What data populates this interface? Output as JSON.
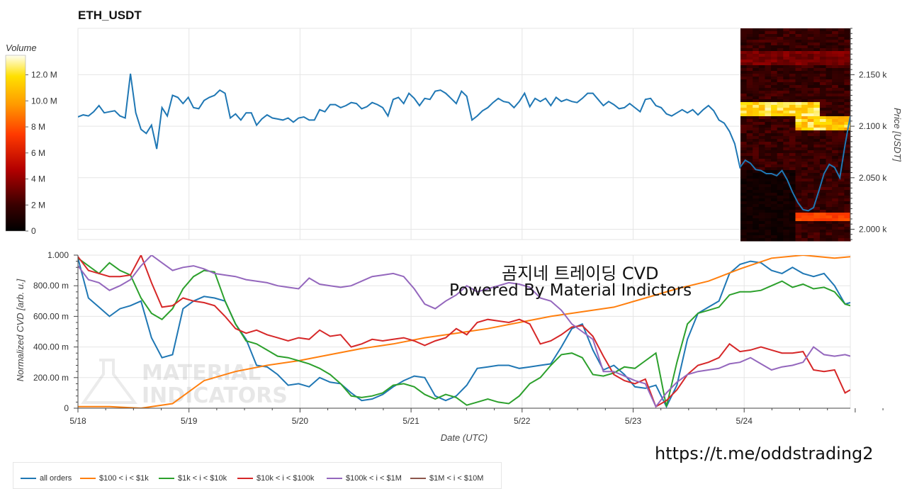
{
  "title": "ETH_USDT",
  "overlay": {
    "line1": "곰지네 트레이딩 CVD",
    "line2": "Powered By Material Indictors"
  },
  "watermark": {
    "line1": "MATERIAL",
    "line2": "INDICATORS"
  },
  "url_text": "https://t.me/oddstrading2",
  "colors": {
    "all_orders": "#1f77b4",
    "s100_1k": "#ff7f0e",
    "s1k_10k": "#2ca02c",
    "s10k_100k": "#d62728",
    "s100k_1m": "#9467bd",
    "s1m_10m": "#8c564b",
    "grid": "#e5e5e5",
    "axis": "#444444"
  },
  "legend": [
    {
      "label": "all orders",
      "color": "#1f77b4"
    },
    {
      "label": "$100 < i < $1k",
      "color": "#ff7f0e"
    },
    {
      "label": "$1k < i < $10k",
      "color": "#2ca02c"
    },
    {
      "label": "$10k < i < $100k",
      "color": "#d62728"
    },
    {
      "label": "$100k < i < $1M",
      "color": "#9467bd"
    },
    {
      "label": "$1M < i < $10M",
      "color": "#8c564b"
    }
  ],
  "chart_data": [
    {
      "type": "line",
      "title": "ETH_USDT",
      "ylabel": "Price [USDT]",
      "ylim": [
        1990,
        2195
      ],
      "y_ticks": [
        "2.000 k",
        "2.050 k",
        "2.100 k",
        "2.150 k"
      ],
      "y_tick_values": [
        2000,
        2050,
        2100,
        2150
      ],
      "xlim": [
        0,
        7.35
      ],
      "x_ticks": [
        0,
        1,
        2,
        3,
        4,
        5,
        6
      ],
      "grid": true,
      "series": [
        {
          "key": "price",
          "x": [
            0,
            0.05,
            0.1,
            0.15,
            0.2,
            0.25,
            0.3,
            0.35,
            0.4,
            0.45,
            0.5,
            0.55,
            0.6,
            0.65,
            0.7,
            0.75,
            0.8,
            0.85,
            0.9,
            0.95,
            1.0,
            1.05,
            1.1,
            1.15,
            1.2,
            1.25,
            1.3,
            1.35,
            1.4,
            1.45,
            1.5,
            1.55,
            1.6,
            1.65,
            1.7,
            1.75,
            1.8,
            1.85,
            1.9,
            1.95,
            2.0,
            2.05,
            2.1,
            2.15,
            2.2,
            2.25,
            2.3,
            2.35,
            2.4,
            2.45,
            2.5,
            2.55,
            2.6,
            2.65,
            2.7,
            2.75,
            2.8,
            2.85,
            2.9,
            2.95,
            3.0,
            3.05,
            3.1,
            3.15,
            3.2,
            3.25,
            3.3,
            3.35,
            3.4,
            3.45,
            3.5,
            3.55,
            3.6,
            3.65,
            3.7,
            3.75,
            3.8,
            3.85,
            3.9,
            3.95,
            4.0,
            4.05,
            4.1,
            4.15,
            4.2,
            4.25,
            4.3,
            4.35,
            4.4,
            4.45,
            4.5,
            4.55,
            4.6,
            4.65,
            4.7,
            4.75,
            4.8,
            4.85,
            4.9,
            4.95,
            5.0,
            5.05,
            5.1,
            5.15,
            5.2,
            5.25,
            5.3,
            5.35,
            5.4,
            5.45,
            5.5,
            5.55,
            5.6,
            5.65,
            5.7,
            5.75,
            5.8,
            5.85,
            5.9,
            5.95,
            6.0,
            6.05,
            6.1,
            6.15,
            6.2,
            6.25,
            6.3,
            6.35,
            6.4,
            6.45,
            6.5,
            6.55,
            6.6,
            6.65,
            6.7,
            6.75,
            6.8,
            6.85,
            6.9,
            6.95,
            7.0,
            7.05,
            7.1,
            7.15,
            7.2,
            7.25,
            7.3,
            7.35
          ],
          "y": [
            2109,
            2111,
            2110,
            2114,
            2120,
            2113,
            2114,
            2115,
            2110,
            2108,
            2151,
            2113,
            2097,
            2093,
            2101,
            2078,
            2118,
            2110,
            2130,
            2128,
            2122,
            2128,
            2118,
            2117,
            2125,
            2128,
            2130,
            2135,
            2132,
            2108,
            2112,
            2106,
            2113,
            2113,
            2101,
            2107,
            2111,
            2108,
            2107,
            2106,
            2108,
            2104,
            2108,
            2109,
            2106,
            2106,
            2116,
            2114,
            2121,
            2121,
            2118,
            2120,
            2123,
            2122,
            2117,
            2119,
            2123,
            2121,
            2118,
            2110,
            2126,
            2128,
            2122,
            2132,
            2127,
            2120,
            2127,
            2126,
            2134,
            2135,
            2132,
            2127,
            2122,
            2134,
            2129,
            2106,
            2110,
            2115,
            2118,
            2123,
            2127,
            2124,
            2123,
            2118,
            2124,
            2132,
            2119,
            2127,
            2124,
            2127,
            2120,
            2128,
            2124,
            2126,
            2124,
            2123,
            2127,
            2132,
            2132,
            2126,
            2120,
            2124,
            2121,
            2117,
            2118,
            2122,
            2118,
            2114,
            2126,
            2127,
            2120,
            2118,
            2112,
            2110,
            2113,
            2116,
            2113,
            2116,
            2111,
            2116,
            2120,
            2115,
            2106,
            2103,
            2095,
            2083,
            2060,
            2067,
            2064,
            2058,
            2057,
            2054,
            2054,
            2052,
            2057,
            2048,
            2036,
            2026,
            2019,
            2018,
            2021,
            2037,
            2054,
            2063,
            2060,
            2050,
            2082,
            2110
          ],
          "color": "#1f77b4"
        }
      ]
    },
    {
      "type": "line",
      "xlabel": "Date (UTC)",
      "ylabel": "Normalized CVD [arb. u.]",
      "ylim": [
        0,
        1
      ],
      "y_ticks": [
        "0",
        "200.00 m",
        "400.00 m",
        "600.00 m",
        "800.00 m",
        "1.000"
      ],
      "x_ticks": [
        "5/18",
        "5/19",
        "5/20",
        "5/21",
        "5/22",
        "5/23",
        "5/24"
      ],
      "xlim": [
        0,
        7.35
      ],
      "grid": true,
      "legend_position": "bottom-left",
      "series": [
        {
          "name": "all orders",
          "color": "#1f77b4",
          "x": [
            0,
            0.1,
            0.2,
            0.3,
            0.4,
            0.5,
            0.6,
            0.7,
            0.8,
            0.9,
            1.0,
            1.1,
            1.2,
            1.3,
            1.4,
            1.5,
            1.6,
            1.7,
            1.8,
            1.9,
            2.0,
            2.1,
            2.2,
            2.3,
            2.4,
            2.5,
            2.6,
            2.7,
            2.8,
            2.9,
            3.0,
            3.1,
            3.2,
            3.3,
            3.4,
            3.5,
            3.6,
            3.7,
            3.8,
            3.9,
            4.0,
            4.1,
            4.2,
            4.3,
            4.4,
            4.5,
            4.6,
            4.7,
            4.8,
            4.9,
            5.0,
            5.1,
            5.2,
            5.3,
            5.4,
            5.5,
            5.6,
            5.7,
            5.8,
            5.9,
            6.0,
            6.1,
            6.2,
            6.3,
            6.4,
            6.5,
            6.6,
            6.7,
            6.8,
            6.9,
            7.0,
            7.1,
            7.2,
            7.3,
            7.35
          ],
          "y": [
            0.98,
            0.72,
            0.66,
            0.6,
            0.65,
            0.67,
            0.7,
            0.46,
            0.33,
            0.35,
            0.65,
            0.7,
            0.73,
            0.72,
            0.7,
            0.55,
            0.45,
            0.28,
            0.27,
            0.22,
            0.15,
            0.16,
            0.14,
            0.2,
            0.17,
            0.16,
            0.1,
            0.05,
            0.06,
            0.09,
            0.14,
            0.18,
            0.21,
            0.2,
            0.08,
            0.05,
            0.08,
            0.15,
            0.26,
            0.27,
            0.28,
            0.28,
            0.26,
            0.27,
            0.28,
            0.29,
            0.4,
            0.52,
            0.55,
            0.38,
            0.25,
            0.28,
            0.22,
            0.14,
            0.13,
            0.15,
            0.01,
            0.15,
            0.45,
            0.62,
            0.66,
            0.7,
            0.88,
            0.94,
            0.96,
            0.95,
            0.9,
            0.88,
            0.92,
            0.88,
            0.86,
            0.88,
            0.8,
            0.68,
            0.69
          ]
        },
        {
          "name": "$100 < i < $1k",
          "color": "#ff7f0e",
          "x": [
            0,
            0.3,
            0.6,
            0.9,
            1.2,
            1.5,
            1.8,
            2.1,
            2.4,
            2.7,
            3.0,
            3.3,
            3.6,
            3.9,
            4.2,
            4.5,
            4.8,
            5.1,
            5.4,
            5.7,
            6.0,
            6.3,
            6.6,
            6.9,
            7.2,
            7.35
          ],
          "y": [
            0.01,
            0.01,
            0.0,
            0.03,
            0.18,
            0.24,
            0.28,
            0.31,
            0.35,
            0.39,
            0.42,
            0.46,
            0.49,
            0.52,
            0.56,
            0.6,
            0.63,
            0.66,
            0.72,
            0.78,
            0.83,
            0.91,
            0.98,
            1.0,
            0.98,
            0.99
          ]
        },
        {
          "name": "$1k < i < $10k",
          "color": "#2ca02c",
          "x": [
            0,
            0.1,
            0.2,
            0.3,
            0.4,
            0.5,
            0.6,
            0.7,
            0.8,
            0.9,
            1.0,
            1.1,
            1.2,
            1.3,
            1.4,
            1.5,
            1.6,
            1.7,
            1.8,
            1.9,
            2.0,
            2.1,
            2.2,
            2.3,
            2.4,
            2.5,
            2.6,
            2.7,
            2.8,
            2.9,
            3.0,
            3.1,
            3.2,
            3.3,
            3.4,
            3.5,
            3.6,
            3.7,
            3.8,
            3.9,
            4.0,
            4.1,
            4.2,
            4.3,
            4.4,
            4.5,
            4.6,
            4.7,
            4.8,
            4.9,
            5.0,
            5.1,
            5.2,
            5.3,
            5.4,
            5.5,
            5.6,
            5.7,
            5.8,
            5.9,
            6.0,
            6.1,
            6.2,
            6.3,
            6.4,
            6.5,
            6.6,
            6.7,
            6.8,
            6.9,
            7.0,
            7.1,
            7.2,
            7.3,
            7.35
          ],
          "y": [
            0.98,
            0.93,
            0.88,
            0.95,
            0.9,
            0.87,
            0.72,
            0.62,
            0.58,
            0.65,
            0.78,
            0.86,
            0.9,
            0.89,
            0.7,
            0.55,
            0.44,
            0.42,
            0.38,
            0.34,
            0.33,
            0.31,
            0.29,
            0.26,
            0.22,
            0.16,
            0.08,
            0.07,
            0.08,
            0.1,
            0.15,
            0.16,
            0.14,
            0.09,
            0.06,
            0.09,
            0.07,
            0.02,
            0.04,
            0.06,
            0.04,
            0.03,
            0.08,
            0.16,
            0.2,
            0.28,
            0.35,
            0.36,
            0.33,
            0.22,
            0.21,
            0.23,
            0.27,
            0.26,
            0.31,
            0.36,
            0.01,
            0.3,
            0.55,
            0.62,
            0.64,
            0.66,
            0.74,
            0.76,
            0.76,
            0.77,
            0.8,
            0.83,
            0.79,
            0.81,
            0.78,
            0.79,
            0.76,
            0.68,
            0.67
          ]
        },
        {
          "name": "$10k < i < $100k",
          "color": "#d62728",
          "x": [
            0,
            0.1,
            0.2,
            0.3,
            0.4,
            0.5,
            0.6,
            0.7,
            0.8,
            0.9,
            1.0,
            1.1,
            1.2,
            1.3,
            1.4,
            1.5,
            1.6,
            1.7,
            1.8,
            1.9,
            2.0,
            2.1,
            2.2,
            2.3,
            2.4,
            2.5,
            2.6,
            2.7,
            2.8,
            2.9,
            3.0,
            3.1,
            3.2,
            3.3,
            3.4,
            3.5,
            3.6,
            3.7,
            3.8,
            3.9,
            4.0,
            4.1,
            4.2,
            4.3,
            4.4,
            4.5,
            4.6,
            4.7,
            4.8,
            4.9,
            5.0,
            5.1,
            5.2,
            5.3,
            5.4,
            5.5,
            5.6,
            5.7,
            5.8,
            5.9,
            6.0,
            6.1,
            6.2,
            6.3,
            6.4,
            6.5,
            6.6,
            6.7,
            6.8,
            6.9,
            7.0,
            7.1,
            7.2,
            7.3,
            7.35
          ],
          "y": [
            0.99,
            0.9,
            0.88,
            0.86,
            0.86,
            0.87,
            1.0,
            0.82,
            0.66,
            0.67,
            0.72,
            0.7,
            0.69,
            0.67,
            0.6,
            0.52,
            0.49,
            0.51,
            0.48,
            0.46,
            0.44,
            0.46,
            0.45,
            0.51,
            0.47,
            0.48,
            0.4,
            0.42,
            0.45,
            0.44,
            0.45,
            0.46,
            0.44,
            0.41,
            0.44,
            0.46,
            0.52,
            0.48,
            0.56,
            0.58,
            0.57,
            0.56,
            0.58,
            0.55,
            0.42,
            0.44,
            0.48,
            0.53,
            0.54,
            0.47,
            0.34,
            0.22,
            0.18,
            0.16,
            0.19,
            0.01,
            0.05,
            0.12,
            0.22,
            0.28,
            0.3,
            0.33,
            0.42,
            0.37,
            0.38,
            0.4,
            0.38,
            0.36,
            0.36,
            0.37,
            0.25,
            0.24,
            0.25,
            0.1,
            0.12
          ]
        },
        {
          "name": "$100k < i < $1M",
          "color": "#9467bd",
          "x": [
            0,
            0.1,
            0.2,
            0.3,
            0.4,
            0.5,
            0.6,
            0.7,
            0.8,
            0.9,
            1.0,
            1.1,
            1.2,
            1.3,
            1.4,
            1.5,
            1.6,
            1.7,
            1.8,
            1.9,
            2.0,
            2.1,
            2.2,
            2.3,
            2.4,
            2.5,
            2.6,
            2.7,
            2.8,
            2.9,
            3.0,
            3.1,
            3.2,
            3.3,
            3.4,
            3.5,
            3.6,
            3.7,
            3.8,
            3.9,
            4.0,
            4.1,
            4.2,
            4.3,
            4.4,
            4.5,
            4.6,
            4.7,
            4.8,
            4.9,
            5.0,
            5.1,
            5.2,
            5.3,
            5.4,
            5.5,
            5.6,
            5.7,
            5.8,
            5.9,
            6.0,
            6.1,
            6.2,
            6.3,
            6.4,
            6.5,
            6.6,
            6.7,
            6.8,
            6.9,
            7.0,
            7.1,
            7.2,
            7.3,
            7.35
          ],
          "y": [
            0.93,
            0.84,
            0.82,
            0.77,
            0.8,
            0.84,
            0.93,
            1.0,
            0.95,
            0.9,
            0.92,
            0.93,
            0.91,
            0.88,
            0.87,
            0.86,
            0.84,
            0.83,
            0.82,
            0.8,
            0.79,
            0.78,
            0.85,
            0.81,
            0.8,
            0.79,
            0.8,
            0.83,
            0.86,
            0.87,
            0.88,
            0.86,
            0.78,
            0.68,
            0.65,
            0.7,
            0.74,
            0.8,
            0.76,
            0.78,
            0.8,
            0.82,
            0.81,
            0.79,
            0.72,
            0.7,
            0.64,
            0.55,
            0.5,
            0.45,
            0.24,
            0.24,
            0.21,
            0.18,
            0.16,
            0.01,
            0.1,
            0.17,
            0.22,
            0.24,
            0.25,
            0.26,
            0.29,
            0.3,
            0.33,
            0.29,
            0.25,
            0.27,
            0.28,
            0.3,
            0.4,
            0.35,
            0.34,
            0.35,
            0.34
          ]
        },
        {
          "name": "$1M < i < $10M",
          "color": "#8c564b",
          "x": [],
          "y": []
        }
      ]
    }
  ],
  "heatmap": {
    "title": "Volume",
    "colorbar_ticks": [
      "0",
      "2 M",
      "4 M",
      "6 M",
      "8 M",
      "10.0 M",
      "12.0 M"
    ],
    "colorbar_values": [
      0,
      2,
      4,
      6,
      8,
      10,
      12
    ],
    "max_value": 13.5
  }
}
